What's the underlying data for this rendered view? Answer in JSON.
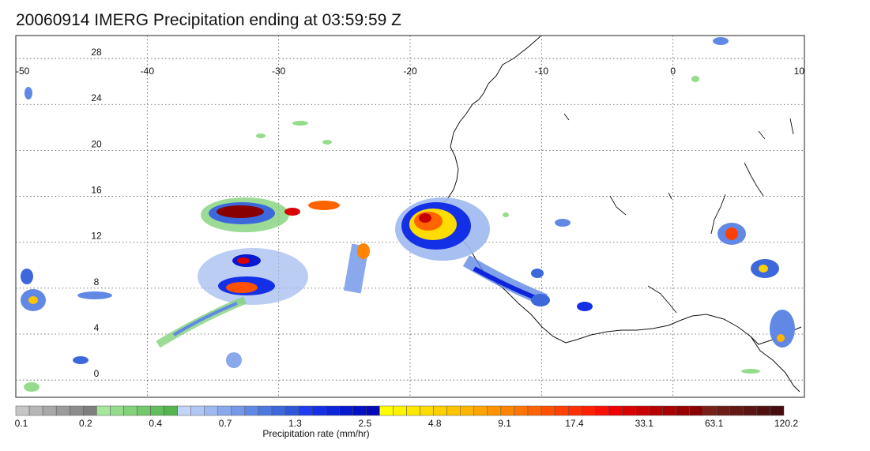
{
  "title": "20060914 IMERG Precipitation ending at 03:59:59 Z",
  "map": {
    "lon_range": [
      -50,
      10
    ],
    "lat_range": [
      -1.5,
      30
    ],
    "lon_ticks": [
      "-50",
      "-40",
      "-30",
      "-20",
      "-10",
      "0",
      "10"
    ],
    "lat_ticks": [
      "0",
      "4",
      "8",
      "12",
      "16",
      "20",
      "24",
      "28"
    ],
    "grid": "dotted"
  },
  "colorbar": {
    "title": "Precipitation rate (mm/hr)",
    "tick_labels": [
      "0.1",
      "0.2",
      "0.4",
      "0.7",
      "1.3",
      "2.5",
      "4.8",
      "9.1",
      "17.4",
      "33.1",
      "63.1",
      "120.2"
    ],
    "colors": [
      "#c6c6c6",
      "#b6b6b6",
      "#a8a8a8",
      "#9b9b9b",
      "#8c8c8c",
      "#7f7f7f",
      "#a8e6a0",
      "#94dc8c",
      "#82d27a",
      "#72c86a",
      "#62be5c",
      "#54b44f",
      "#c4d4f8",
      "#b2c6f4",
      "#9fb8f0",
      "#8aa8ec",
      "#7698e8",
      "#6088e4",
      "#4c78e0",
      "#3c68dc",
      "#2e58d8",
      "#1e3cf0",
      "#1430e6",
      "#0c24dc",
      "#0618d0",
      "#0010c4",
      "#0008b8",
      "#ffff00",
      "#fff400",
      "#ffe800",
      "#ffdc00",
      "#ffd000",
      "#ffc400",
      "#ffb400",
      "#ffa400",
      "#ff9400",
      "#ff8400",
      "#ff7400",
      "#ff6400",
      "#ff5000",
      "#ff4000",
      "#ff3000",
      "#ff2000",
      "#f81000",
      "#f00000",
      "#d80000",
      "#c80000",
      "#b80000",
      "#a80000",
      "#980000",
      "#880000",
      "#782018",
      "#6e1c16",
      "#641814",
      "#5a1412",
      "#501010",
      "#460c0e"
    ]
  }
}
